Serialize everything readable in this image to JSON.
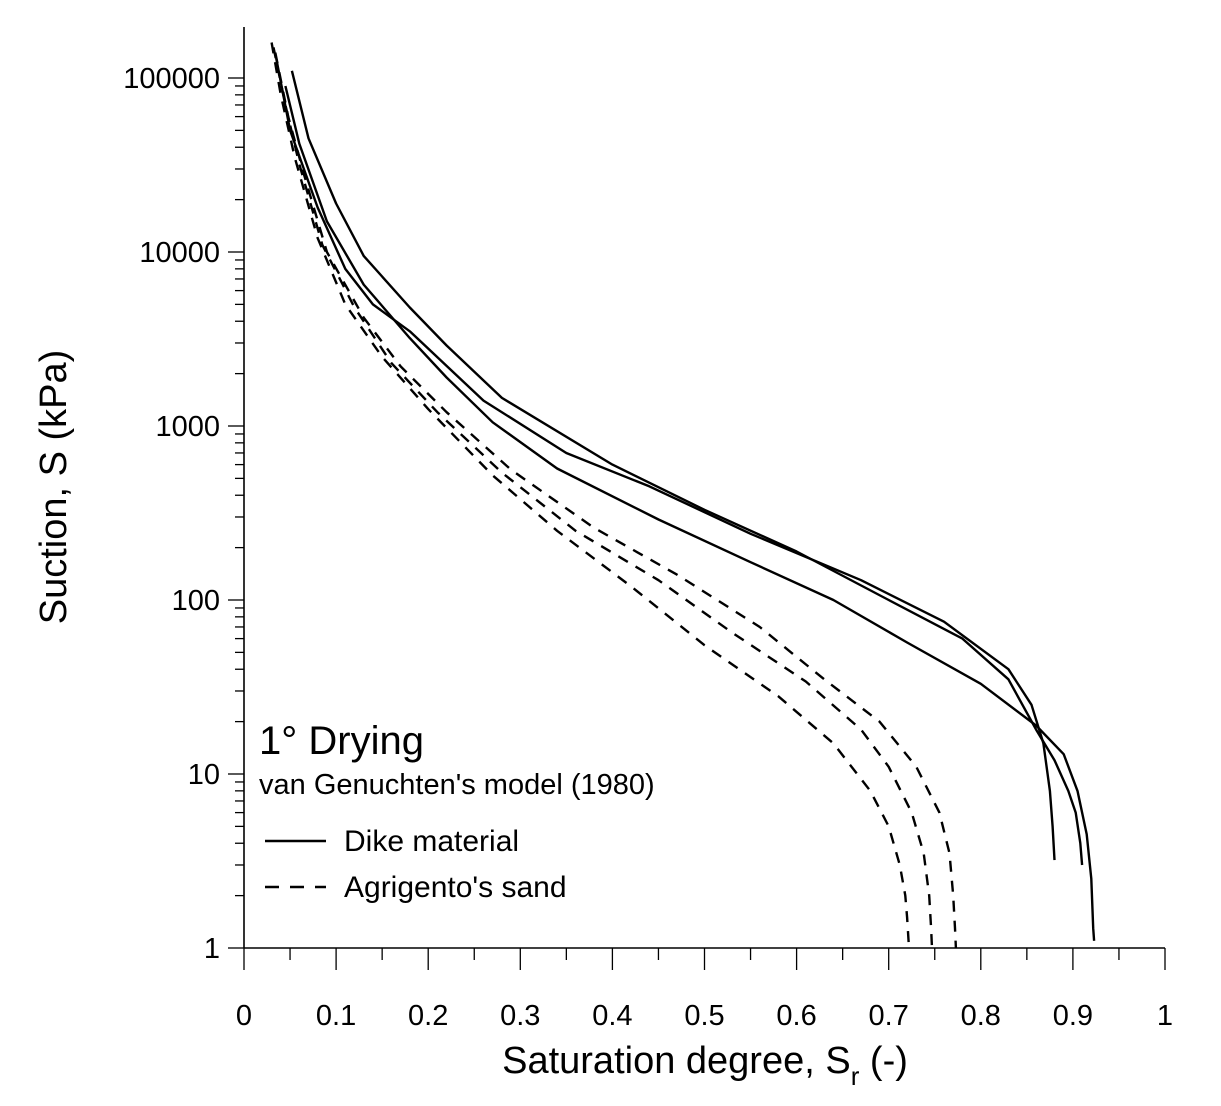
{
  "chart_data": {
    "type": "line",
    "xlabel_main": "Saturation degree, S",
    "xlabel_sub": "r",
    "xlabel_tail": " (-)",
    "ylabel": "Suction, S (kPa)",
    "xlim": [
      0,
      1
    ],
    "ylim": [
      1,
      200000
    ],
    "yscale": "log",
    "x_ticks": [
      0,
      0.1,
      0.2,
      0.3,
      0.4,
      0.5,
      0.6,
      0.7,
      0.8,
      0.9,
      1
    ],
    "x_tick_labels": [
      "0",
      "0.1",
      "0.2",
      "0.3",
      "0.4",
      "0.5",
      "0.6",
      "0.7",
      "0.8",
      "0.9",
      "1"
    ],
    "y_ticks": [
      1,
      10,
      100,
      1000,
      10000,
      100000
    ],
    "y_tick_labels": [
      "1",
      "10",
      "100",
      "1000",
      "10000",
      "100000"
    ],
    "annotations": {
      "title": "1° Drying",
      "subtitle": "van Genuchten's model (1980)"
    },
    "legend": [
      {
        "label": "Dike material",
        "dash": "solid"
      },
      {
        "label": "Agrigento's sand",
        "dash": "dashed"
      }
    ],
    "series": [
      {
        "name": "Dike material 1",
        "dash": "solid",
        "points": [
          [
            0.052,
            110000
          ],
          [
            0.07,
            45000
          ],
          [
            0.1,
            19000
          ],
          [
            0.13,
            9500
          ],
          [
            0.18,
            4800
          ],
          [
            0.22,
            2900
          ],
          [
            0.28,
            1450
          ],
          [
            0.4,
            600
          ],
          [
            0.5,
            330
          ],
          [
            0.6,
            190
          ],
          [
            0.7,
            100
          ],
          [
            0.78,
            60
          ],
          [
            0.83,
            35
          ],
          [
            0.86,
            18
          ],
          [
            0.88,
            12
          ],
          [
            0.895,
            8
          ],
          [
            0.903,
            6
          ],
          [
            0.908,
            4
          ],
          [
            0.91,
            3
          ]
        ]
      },
      {
        "name": "Dike material 2",
        "dash": "solid",
        "points": [
          [
            0.045,
            90000
          ],
          [
            0.06,
            42000
          ],
          [
            0.09,
            15000
          ],
          [
            0.13,
            6500
          ],
          [
            0.18,
            3200
          ],
          [
            0.22,
            1900
          ],
          [
            0.27,
            1050
          ],
          [
            0.34,
            570
          ],
          [
            0.45,
            290
          ],
          [
            0.55,
            165
          ],
          [
            0.64,
            100
          ],
          [
            0.72,
            57
          ],
          [
            0.8,
            33
          ],
          [
            0.86,
            19
          ],
          [
            0.89,
            13
          ],
          [
            0.905,
            8
          ],
          [
            0.915,
            4.5
          ],
          [
            0.92,
            2.5
          ],
          [
            0.922,
            1.3
          ],
          [
            0.923,
            1.1
          ]
        ]
      },
      {
        "name": "Dike material 3",
        "dash": "solid",
        "points": [
          [
            0.035,
            130000
          ],
          [
            0.05,
            50000
          ],
          [
            0.08,
            18000
          ],
          [
            0.11,
            8000
          ],
          [
            0.14,
            5000
          ],
          [
            0.18,
            3500
          ],
          [
            0.26,
            1400
          ],
          [
            0.35,
            700
          ],
          [
            0.44,
            450
          ],
          [
            0.55,
            240
          ],
          [
            0.67,
            130
          ],
          [
            0.76,
            75
          ],
          [
            0.83,
            40
          ],
          [
            0.855,
            25
          ],
          [
            0.868,
            15
          ],
          [
            0.875,
            8
          ],
          [
            0.878,
            5
          ],
          [
            0.88,
            3.2
          ]
        ]
      },
      {
        "name": "Agrigento's sand 1",
        "dash": "dashed",
        "points": [
          [
            0.03,
            160000
          ],
          [
            0.04,
            80000
          ],
          [
            0.055,
            35000
          ],
          [
            0.08,
            12000
          ],
          [
            0.11,
            5000
          ],
          [
            0.15,
            2500
          ],
          [
            0.2,
            1250
          ],
          [
            0.27,
            520
          ],
          [
            0.34,
            250
          ],
          [
            0.42,
            120
          ],
          [
            0.5,
            55
          ],
          [
            0.58,
            28
          ],
          [
            0.64,
            15
          ],
          [
            0.68,
            8
          ],
          [
            0.7,
            5
          ],
          [
            0.712,
            3
          ],
          [
            0.718,
            2
          ],
          [
            0.72,
            1.5
          ],
          [
            0.722,
            1
          ]
        ]
      },
      {
        "name": "Agrigento's sand 2",
        "dash": "dashed",
        "points": [
          [
            0.032,
            150000
          ],
          [
            0.045,
            70000
          ],
          [
            0.06,
            32000
          ],
          [
            0.085,
            11000
          ],
          [
            0.12,
            4800
          ],
          [
            0.16,
            2300
          ],
          [
            0.21,
            1200
          ],
          [
            0.28,
            540
          ],
          [
            0.36,
            250
          ],
          [
            0.45,
            130
          ],
          [
            0.53,
            65
          ],
          [
            0.61,
            34
          ],
          [
            0.67,
            18
          ],
          [
            0.7,
            11
          ],
          [
            0.725,
            6
          ],
          [
            0.738,
            3.5
          ],
          [
            0.744,
            2
          ],
          [
            0.746,
            1.3
          ],
          [
            0.747,
            1
          ]
        ]
      },
      {
        "name": "Agrigento's sand 3",
        "dash": "dashed",
        "points": [
          [
            0.034,
            140000
          ],
          [
            0.048,
            60000
          ],
          [
            0.065,
            28000
          ],
          [
            0.09,
            10000
          ],
          [
            0.13,
            4200
          ],
          [
            0.17,
            2200
          ],
          [
            0.22,
            1200
          ],
          [
            0.29,
            560
          ],
          [
            0.38,
            260
          ],
          [
            0.47,
            140
          ],
          [
            0.56,
            70
          ],
          [
            0.63,
            35
          ],
          [
            0.69,
            20
          ],
          [
            0.73,
            11
          ],
          [
            0.755,
            6
          ],
          [
            0.766,
            3.5
          ],
          [
            0.77,
            2
          ],
          [
            0.772,
            1.3
          ],
          [
            0.773,
            1
          ]
        ]
      }
    ]
  }
}
